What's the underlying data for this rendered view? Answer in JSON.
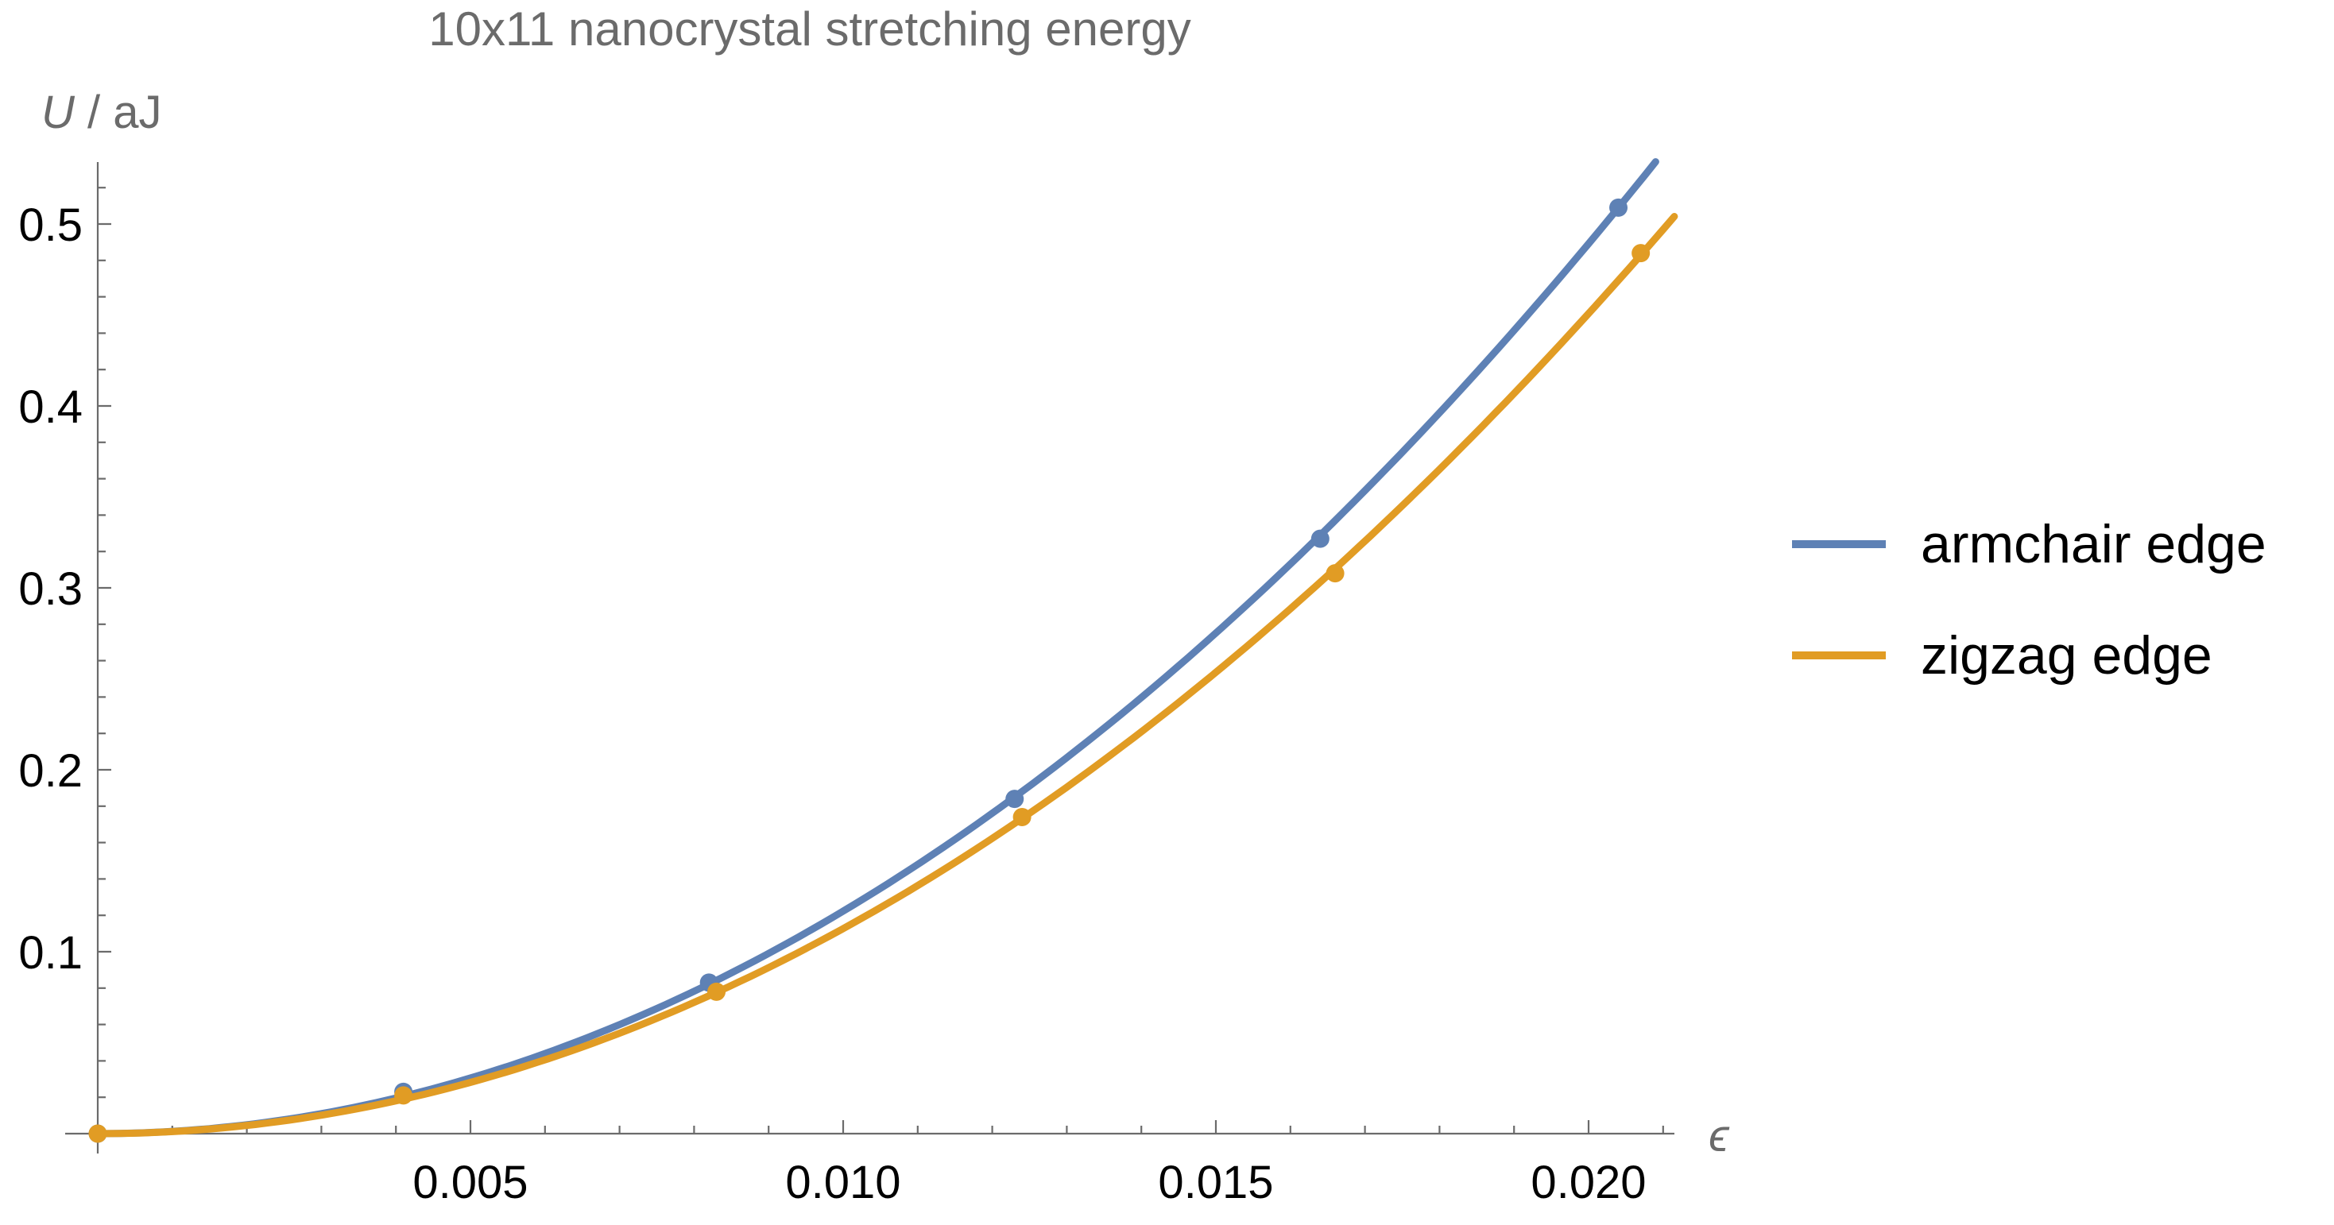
{
  "chart_data": {
    "type": "line",
    "title": "10x11 nanocrystal stretching energy",
    "xlabel": "ϵ",
    "ylabel": "U / aJ",
    "ylabel_var": "U",
    "ylabel_rest": " / aJ",
    "xlim": [
      0,
      0.0212
    ],
    "ylim": [
      0,
      0.537
    ],
    "grid": false,
    "legend_position": "right-outside",
    "axis_color": "#6b6b6b",
    "tick_label_color": "#000000",
    "x_ticks": {
      "values": [
        0.005,
        0.01,
        0.015,
        0.02
      ],
      "labels": [
        "0.005",
        "0.010",
        "0.015",
        "0.020"
      ],
      "minor_step": 0.001
    },
    "y_ticks": {
      "values": [
        0.1,
        0.2,
        0.3,
        0.4,
        0.5
      ],
      "labels": [
        "0.1",
        "0.2",
        "0.3",
        "0.4",
        "0.5"
      ],
      "minor_step": 0.02
    },
    "series": [
      {
        "name": "armchair edge",
        "color": "#5E81B5",
        "marker": "circle",
        "x": [
          0,
          0.0041,
          0.0082,
          0.0123,
          0.0164,
          0.0204
        ],
        "y": [
          0,
          0.023,
          0.083,
          0.184,
          0.327,
          0.509
        ],
        "fit": "quadratic",
        "fit_k": 1223,
        "x_end": 0.0209
      },
      {
        "name": "zigzag edge",
        "color": "#E19C24",
        "marker": "circle",
        "x": [
          0,
          0.0041,
          0.0083,
          0.0124,
          0.0166,
          0.0207
        ],
        "y": [
          0,
          0.021,
          0.078,
          0.174,
          0.308,
          0.484
        ],
        "fit": "quadratic",
        "fit_k": 1127,
        "x_end": 0.02115
      }
    ]
  }
}
